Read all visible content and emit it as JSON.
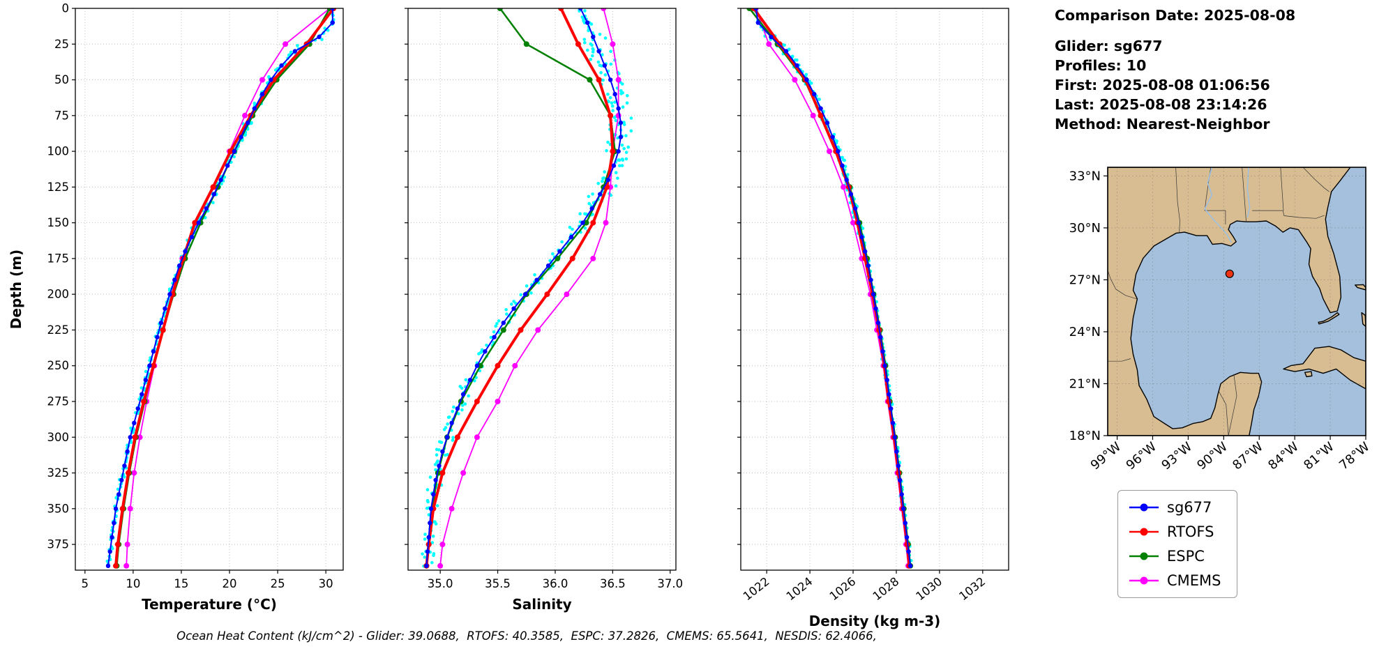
{
  "figure": {
    "caption": "Ocean Heat Content (kJ/cm^2) - Glider: 39.0688,  RTOFS: 40.3585,  ESPC: 37.2826,  CMEMS: 65.5641,  NESDIS: 62.4066,"
  },
  "info": {
    "comparison_date": "Comparison Date: 2025-08-08",
    "lines": [
      "Glider: sg677",
      "Profiles: 10",
      "First: 2025-08-08 01:06:56",
      "Last: 2025-08-08 23:14:26",
      "Method: Nearest-Neighbor"
    ]
  },
  "legend": {
    "items": [
      {
        "label": "sg677",
        "color": "#0000ff"
      },
      {
        "label": "RTOFS",
        "color": "#ff0000"
      },
      {
        "label": "ESPC",
        "color": "#008000"
      },
      {
        "label": "CMEMS",
        "color": "#ff00ff"
      }
    ]
  },
  "chart_data": [
    {
      "id": "temperature",
      "type": "line",
      "xlabel": "Temperature (°C)",
      "ylabel": "Depth (m)",
      "xlim": [
        4.0,
        31.8
      ],
      "ylim": [
        0,
        393
      ],
      "xticks": [
        5,
        10,
        15,
        20,
        25,
        30
      ],
      "xtick_labels": [
        "5",
        "10",
        "15",
        "20",
        "25",
        "30"
      ],
      "yticks": [
        0,
        25,
        50,
        75,
        100,
        125,
        150,
        175,
        200,
        225,
        250,
        275,
        300,
        325,
        350,
        375
      ],
      "grid": true,
      "scatter": {
        "name": "glider-raw-points",
        "color": "#00ffff",
        "jitter": 0.25
      },
      "series": [
        {
          "name": "sg677",
          "color": "#0000ff",
          "lw": 2,
          "marker_r": 3.2,
          "depths": [
            0,
            10,
            20,
            30,
            40,
            50,
            60,
            70,
            80,
            90,
            100,
            110,
            120,
            130,
            140,
            150,
            160,
            170,
            180,
            190,
            200,
            210,
            220,
            230,
            240,
            250,
            260,
            270,
            280,
            290,
            300,
            310,
            320,
            330,
            340,
            350,
            360,
            370,
            380,
            390
          ],
          "values": [
            30.7,
            30.7,
            29.3,
            26.8,
            25.4,
            24.3,
            23.4,
            22.6,
            21.9,
            21.2,
            20.5,
            19.8,
            19.1,
            18.4,
            17.6,
            16.8,
            16.1,
            15.4,
            14.8,
            14.3,
            13.8,
            13.3,
            12.9,
            12.5,
            12.1,
            11.7,
            11.3,
            10.9,
            10.5,
            10.1,
            9.7,
            9.4,
            9.1,
            8.8,
            8.5,
            8.2,
            8.0,
            7.8,
            7.6,
            7.4
          ]
        },
        {
          "name": "RTOFS",
          "color": "#ff0000",
          "lw": 4,
          "marker_r": 4,
          "depths": [
            0,
            25,
            50,
            75,
            100,
            125,
            150,
            175,
            200,
            225,
            250,
            275,
            300,
            325,
            350,
            375,
            390
          ],
          "values": [
            30.8,
            28.0,
            24.6,
            22.2,
            20.1,
            18.3,
            16.4,
            15.2,
            14.1,
            13.1,
            12.1,
            11.1,
            10.2,
            9.5,
            8.9,
            8.4,
            8.2
          ]
        },
        {
          "name": "ESPC",
          "color": "#008000",
          "lw": 2.5,
          "marker_r": 4,
          "depths": [
            0,
            25,
            50,
            75,
            100,
            125,
            150,
            175,
            200,
            225,
            250,
            275,
            300,
            325,
            350,
            375,
            390
          ],
          "values": [
            30.4,
            28.3,
            24.9,
            22.4,
            20.5,
            18.8,
            17.0,
            15.4,
            14.2,
            13.1,
            12.1,
            11.2,
            10.3,
            9.6,
            9.0,
            8.5,
            8.3
          ]
        },
        {
          "name": "CMEMS",
          "color": "#ff00ff",
          "lw": 1.8,
          "marker_r": 4,
          "depths": [
            0,
            25,
            50,
            75,
            100,
            125,
            150,
            175,
            200,
            225,
            250,
            275,
            300,
            325,
            350,
            375,
            390
          ],
          "values": [
            30.4,
            25.8,
            23.4,
            21.6,
            20.0,
            18.4,
            16.5,
            15.1,
            14.0,
            13.1,
            12.2,
            11.4,
            10.7,
            10.1,
            9.7,
            9.4,
            9.3
          ]
        }
      ]
    },
    {
      "id": "salinity",
      "type": "line",
      "xlabel": "Salinity",
      "xlim": [
        34.72,
        37.05
      ],
      "ylim": [
        0,
        393
      ],
      "xticks": [
        35.0,
        35.5,
        36.0,
        36.5,
        37.0
      ],
      "xtick_labels": [
        "35.0",
        "35.5",
        "36.0",
        "36.5",
        "37.0"
      ],
      "yticks": [
        0,
        25,
        50,
        75,
        100,
        125,
        150,
        175,
        200,
        225,
        250,
        275,
        300,
        325,
        350,
        375
      ],
      "grid": true,
      "scatter": {
        "name": "glider-raw-points",
        "color": "#00ffff",
        "jitter": 0.07
      },
      "series": [
        {
          "name": "sg677",
          "color": "#0000ff",
          "lw": 2,
          "marker_r": 3.2,
          "depths": [
            0,
            10,
            20,
            30,
            40,
            50,
            60,
            70,
            80,
            90,
            100,
            110,
            120,
            130,
            140,
            150,
            160,
            170,
            180,
            190,
            200,
            210,
            220,
            230,
            240,
            250,
            260,
            270,
            280,
            290,
            300,
            310,
            320,
            330,
            340,
            350,
            360,
            370,
            380,
            390
          ],
          "values": [
            36.22,
            36.28,
            36.33,
            36.38,
            36.43,
            36.48,
            36.52,
            36.55,
            36.57,
            36.57,
            36.55,
            36.51,
            36.46,
            36.39,
            36.32,
            36.24,
            36.14,
            36.04,
            35.94,
            35.84,
            35.74,
            35.64,
            35.55,
            35.47,
            35.39,
            35.32,
            35.26,
            35.2,
            35.15,
            35.1,
            35.06,
            35.02,
            34.99,
            34.96,
            34.94,
            34.92,
            34.91,
            34.9,
            34.89,
            34.88
          ]
        },
        {
          "name": "RTOFS",
          "color": "#ff0000",
          "lw": 4,
          "marker_r": 4,
          "depths": [
            0,
            25,
            50,
            75,
            100,
            125,
            150,
            175,
            200,
            225,
            250,
            275,
            300,
            325,
            350,
            375,
            390
          ],
          "values": [
            36.05,
            36.2,
            36.38,
            36.48,
            36.5,
            36.45,
            36.33,
            36.15,
            35.93,
            35.7,
            35.5,
            35.32,
            35.15,
            35.02,
            34.94,
            34.9,
            34.88
          ]
        },
        {
          "name": "ESPC",
          "color": "#008000",
          "lw": 2.5,
          "marker_r": 4,
          "depths": [
            0,
            25,
            50,
            75,
            100,
            125,
            150,
            175,
            200,
            225,
            250,
            275,
            300,
            325,
            350,
            375,
            390
          ],
          "values": [
            35.52,
            35.75,
            36.3,
            36.48,
            36.52,
            36.42,
            36.27,
            36.02,
            35.75,
            35.55,
            35.35,
            35.18,
            35.06,
            34.98,
            34.93,
            34.9,
            34.88
          ]
        },
        {
          "name": "CMEMS",
          "color": "#ff00ff",
          "lw": 1.8,
          "marker_r": 4,
          "depths": [
            0,
            25,
            50,
            75,
            100,
            125,
            150,
            175,
            200,
            225,
            250,
            275,
            300,
            325,
            350,
            375,
            390
          ],
          "values": [
            36.42,
            36.5,
            36.55,
            36.55,
            36.5,
            36.48,
            36.44,
            36.33,
            36.1,
            35.85,
            35.65,
            35.5,
            35.32,
            35.2,
            35.1,
            35.02,
            35.0
          ]
        }
      ]
    },
    {
      "id": "density",
      "type": "line",
      "xlabel": "Density (kg m-3)",
      "xlim": [
        1020.8,
        1033.2
      ],
      "ylim": [
        0,
        393
      ],
      "xticks": [
        1022,
        1024,
        1026,
        1028,
        1030,
        1032
      ],
      "xtick_labels": [
        "1022",
        "1024",
        "1026",
        "1028",
        "1030",
        "1032"
      ],
      "xtick_rotation": 38,
      "yticks": [
        0,
        25,
        50,
        75,
        100,
        125,
        150,
        175,
        200,
        225,
        250,
        275,
        300,
        325,
        350,
        375
      ],
      "grid": true,
      "scatter": {
        "name": "glider-raw-points",
        "color": "#00ffff",
        "jitter": 0.1
      },
      "series": [
        {
          "name": "sg677",
          "color": "#0000ff",
          "lw": 2,
          "marker_r": 3.2,
          "depths": [
            0,
            10,
            20,
            30,
            40,
            50,
            60,
            70,
            80,
            90,
            100,
            110,
            120,
            130,
            140,
            150,
            160,
            170,
            180,
            190,
            200,
            210,
            220,
            230,
            240,
            250,
            260,
            270,
            280,
            290,
            300,
            310,
            320,
            330,
            340,
            350,
            360,
            370,
            380,
            390
          ],
          "values": [
            1021.5,
            1021.6,
            1022.2,
            1022.9,
            1023.4,
            1023.85,
            1024.2,
            1024.5,
            1024.8,
            1025.05,
            1025.3,
            1025.5,
            1025.7,
            1025.9,
            1026.1,
            1026.25,
            1026.4,
            1026.55,
            1026.7,
            1026.82,
            1026.94,
            1027.05,
            1027.16,
            1027.27,
            1027.37,
            1027.47,
            1027.57,
            1027.66,
            1027.75,
            1027.84,
            1027.93,
            1028.01,
            1028.09,
            1028.17,
            1028.25,
            1028.33,
            1028.41,
            1028.49,
            1028.57,
            1028.65
          ]
        },
        {
          "name": "RTOFS",
          "color": "#ff0000",
          "lw": 4,
          "marker_r": 4,
          "depths": [
            0,
            25,
            50,
            75,
            100,
            125,
            150,
            175,
            200,
            225,
            250,
            275,
            300,
            325,
            350,
            375,
            390
          ],
          "values": [
            1021.4,
            1022.6,
            1023.8,
            1024.5,
            1025.2,
            1025.8,
            1026.2,
            1026.55,
            1026.9,
            1027.2,
            1027.45,
            1027.65,
            1027.9,
            1028.1,
            1028.3,
            1028.5,
            1028.6
          ]
        },
        {
          "name": "ESPC",
          "color": "#008000",
          "lw": 2.5,
          "marker_r": 4,
          "depths": [
            0,
            25,
            50,
            75,
            100,
            125,
            150,
            175,
            200,
            225,
            250,
            275,
            300,
            325,
            350,
            375,
            390
          ],
          "values": [
            1021.2,
            1022.5,
            1023.75,
            1024.5,
            1025.25,
            1025.85,
            1026.3,
            1026.65,
            1026.95,
            1027.25,
            1027.5,
            1027.7,
            1027.95,
            1028.15,
            1028.35,
            1028.55,
            1028.65
          ]
        },
        {
          "name": "CMEMS",
          "color": "#ff00ff",
          "lw": 1.8,
          "marker_r": 4,
          "depths": [
            0,
            25,
            50,
            75,
            100,
            125,
            150,
            175,
            200,
            225,
            250,
            275,
            300,
            325,
            350,
            375,
            390
          ],
          "values": [
            1021.5,
            1022.1,
            1023.3,
            1024.15,
            1024.9,
            1025.55,
            1026.0,
            1026.4,
            1026.8,
            1027.1,
            1027.4,
            1027.6,
            1027.85,
            1028.05,
            1028.25,
            1028.45,
            1028.55
          ]
        }
      ]
    },
    {
      "id": "gulf-map",
      "type": "map",
      "region": "Gulf of Mexico",
      "extent": {
        "lon_min": -99.8,
        "lon_max": -78.0,
        "lat_min": 18.0,
        "lat_max": 33.5
      },
      "lat_ticks": {
        "values": [
          33,
          30,
          27,
          24,
          21,
          18
        ],
        "labels": [
          "33°N",
          "30°N",
          "27°N",
          "24°N",
          "21°N",
          "18°N"
        ]
      },
      "lon_ticks": {
        "values": [
          -99,
          -96,
          -93,
          -90,
          -87,
          -84,
          -81,
          -78
        ],
        "labels": [
          "99°W",
          "96°W",
          "93°W",
          "90°W",
          "87°W",
          "84°W",
          "81°W",
          "78°W"
        ]
      },
      "marker": {
        "name": "glider-location",
        "lon": -89.5,
        "lat": 27.35,
        "color": "#ee3311"
      },
      "colors": {
        "land": "#d8bd92",
        "water": "#a5c0dc",
        "coast": "#000000"
      }
    }
  ]
}
